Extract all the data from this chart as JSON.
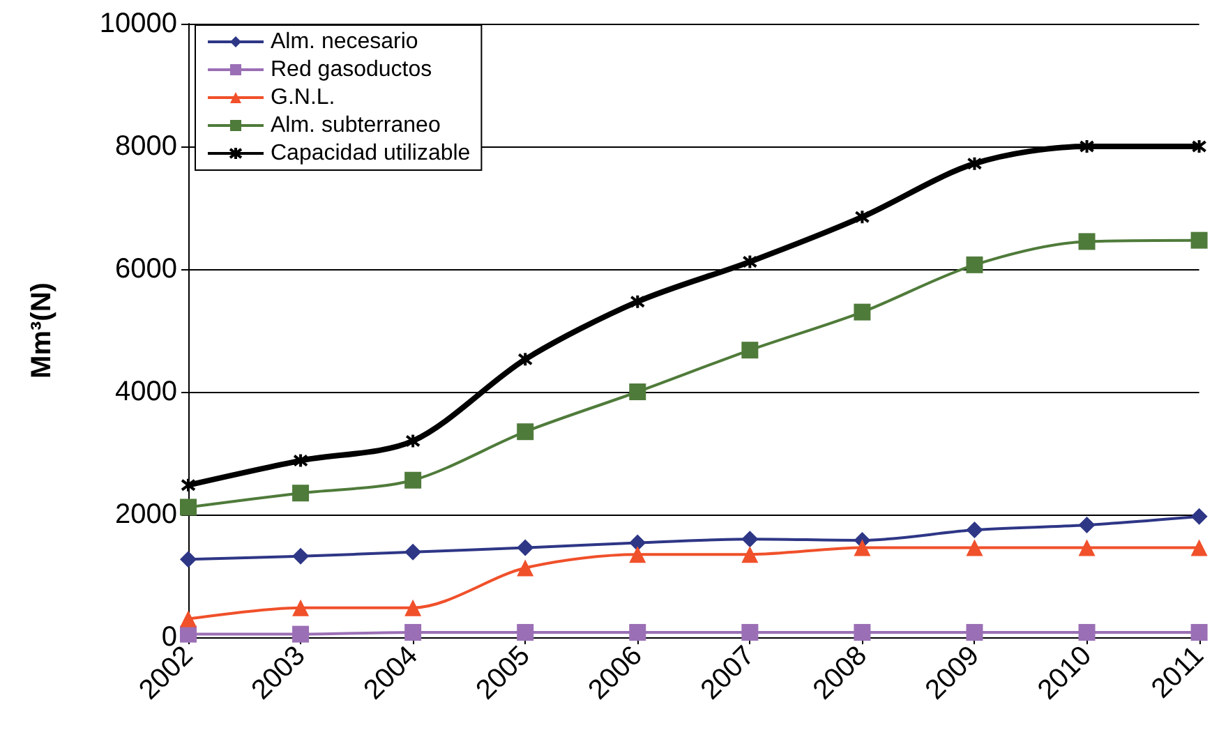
{
  "chart_data": {
    "type": "line",
    "ylabel": "Mm³(N)",
    "categories": [
      "2002",
      "2003",
      "2004",
      "2005",
      "2006",
      "2007",
      "2008",
      "2009",
      "2010",
      "2011"
    ],
    "ylim": [
      0,
      10000
    ],
    "yticks": [
      0,
      2000,
      4000,
      6000,
      8000,
      10000
    ],
    "grid": "y",
    "legend": "top left",
    "series": [
      {
        "name": "Alm. necesario",
        "color": "#2e3686",
        "marker": "diamond",
        "values": [
          1270,
          1320,
          1390,
          1460,
          1540,
          1600,
          1580,
          1750,
          1830,
          1970
        ]
      },
      {
        "name": "Red gasoductos",
        "color": "#9b6fb5",
        "marker": "square",
        "values": [
          50,
          50,
          80,
          80,
          80,
          80,
          80,
          80,
          80,
          80
        ]
      },
      {
        "name": "G.N.L.",
        "color": "#f0502a",
        "marker": "triangle",
        "values": [
          300,
          480,
          480,
          1130,
          1350,
          1350,
          1460,
          1460,
          1460,
          1460
        ]
      },
      {
        "name": "Alm. subterraneo",
        "color": "#4f7b3a",
        "marker": "square",
        "values": [
          2120,
          2350,
          2560,
          3350,
          4000,
          4680,
          5300,
          6070,
          6450,
          6470
        ]
      },
      {
        "name": "Capacidad utilizable",
        "color": "#000000",
        "marker": "cross",
        "values": [
          2480,
          2880,
          3200,
          4530,
          5470,
          6120,
          6850,
          7720,
          8000,
          8000
        ]
      }
    ]
  }
}
